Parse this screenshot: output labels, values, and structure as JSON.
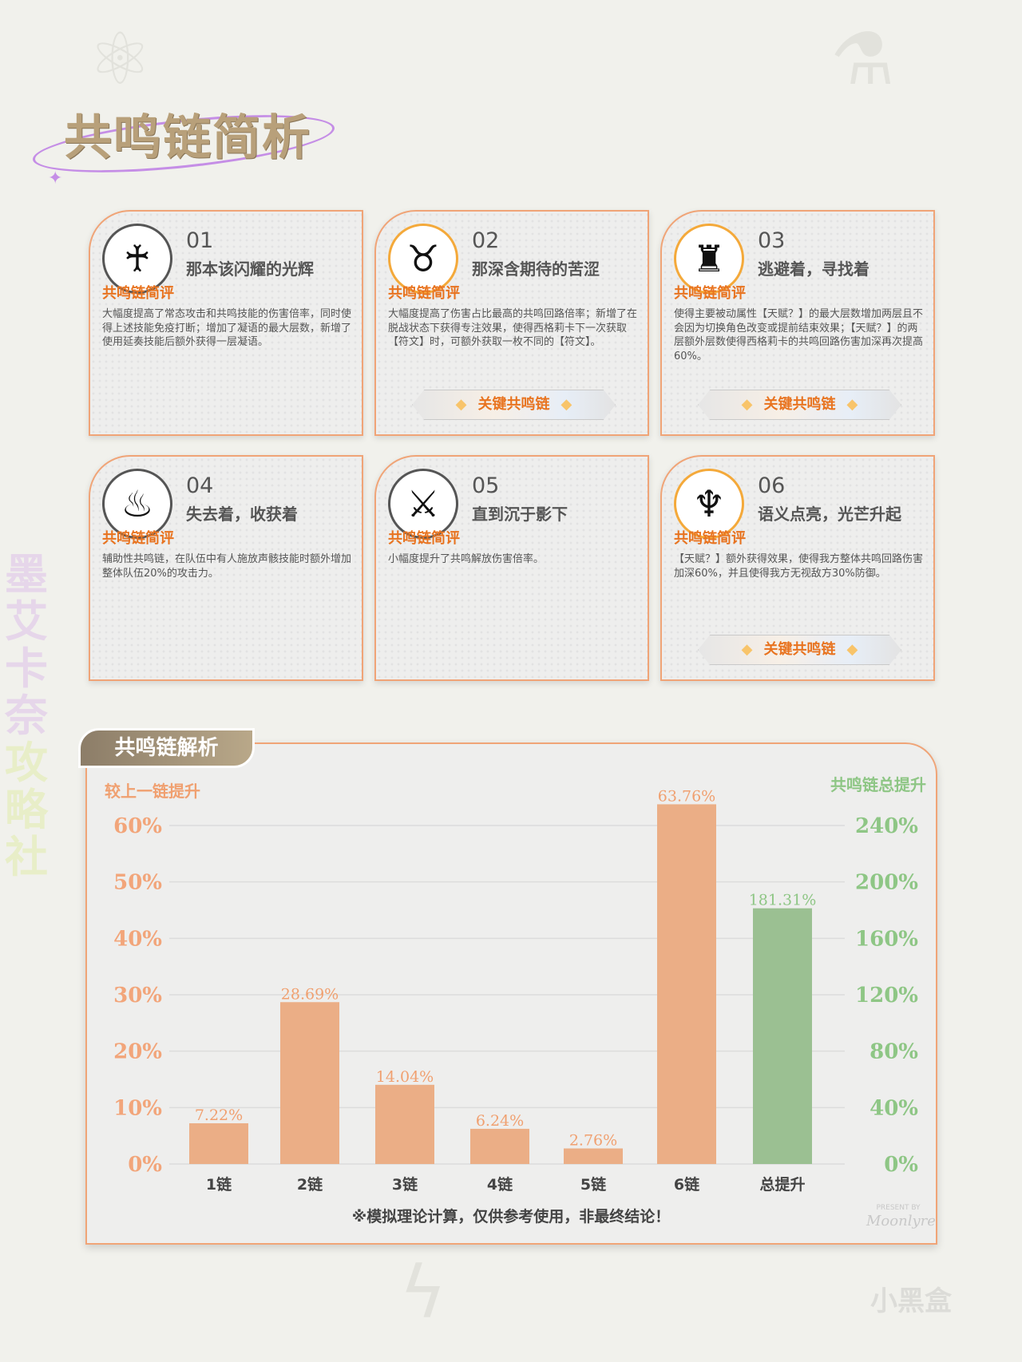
{
  "title": "共鸣链简析",
  "side_text": {
    "part1": "墨艾卡奈",
    "part2": "攻略社"
  },
  "cards": [
    {
      "num": "01",
      "title": "那本该闪耀的光辉",
      "heading": "共鸣链简评",
      "body": "大幅度提高了常态攻击和共鸣技能的伤害倍率，同时使得上述技能免疫打断；增加了凝语的最大层数，新增了使用延奏技能后额外获得一层凝语。",
      "key": false,
      "icon": "resonance-chain-1-icon"
    },
    {
      "num": "02",
      "title": "那深含期待的苦涩",
      "heading": "共鸣链简评",
      "body": "大幅度提高了伤害占比最高的共鸣回路倍率；新增了在脱战状态下获得专注效果，使得西格莉卡下一次获取【符文】时，可额外获取一枚不同的【符文】。",
      "key": true,
      "icon": "resonance-chain-2-icon"
    },
    {
      "num": "03",
      "title": "逃避着，寻找着",
      "heading": "共鸣链简评",
      "body": "使得主要被动属性【天赋？】的最大层数增加两层且不会因为切换角色改变或提前结束效果；【天赋？】的两层额外层数使得西格莉卡的共鸣回路伤害加深再次提高60%。",
      "key": true,
      "icon": "resonance-chain-3-icon"
    },
    {
      "num": "04",
      "title": "失去着，收获着",
      "heading": "共鸣链简评",
      "body": "辅助性共鸣链，在队伍中有人施放声骸技能时额外增加整体队伍20%的攻击力。",
      "key": false,
      "icon": "resonance-chain-4-icon"
    },
    {
      "num": "05",
      "title": "直到沉于影下",
      "heading": "共鸣链简评",
      "body": "小幅度提升了共鸣解放伤害倍率。",
      "key": false,
      "icon": "resonance-chain-5-icon"
    },
    {
      "num": "06",
      "title": "语义点亮，光芒升起",
      "heading": "共鸣链简评",
      "body": "【天赋？】额外获得效果，使得我方整体共鸣回路伤害加深60%，并且使得我方无视敌方30%防御。",
      "key": true,
      "icon": "resonance-chain-6-icon"
    }
  ],
  "key_label": "关键共鸣链",
  "section_tab": "共鸣链解析",
  "chart_data": {
    "type": "bar",
    "categories": [
      "1链",
      "2链",
      "3链",
      "4链",
      "5链",
      "6链",
      "总提升"
    ],
    "series": [
      {
        "name": "较上一链提升",
        "axis": "left",
        "values": [
          7.22,
          28.69,
          14.04,
          6.24,
          2.76,
          63.76,
          null
        ],
        "labels": [
          "7.22%",
          "28.69%",
          "14.04%",
          "6.24%",
          "2.76%",
          "63.76%",
          ""
        ],
        "color": "#ebae86"
      },
      {
        "name": "共鸣链总提升",
        "axis": "right",
        "values": [
          null,
          null,
          null,
          null,
          null,
          null,
          181.31
        ],
        "labels": [
          "",
          "",
          "",
          "",
          "",
          "",
          "181.31%"
        ],
        "color": "#9bc092"
      }
    ],
    "ylabel_left": "较上一链提升",
    "ylabel_right": "共鸣链总提升",
    "ylim_left": [
      0,
      60
    ],
    "yticks_left": [
      "0%",
      "10%",
      "20%",
      "30%",
      "40%",
      "50%",
      "60%"
    ],
    "ylim_right": [
      0,
      240
    ],
    "yticks_right": [
      "0%",
      "40%",
      "80%",
      "120%",
      "160%",
      "200%",
      "240%"
    ],
    "grid": true,
    "footnote": "※模拟理论计算，仅供参考使用，非最终结论！"
  },
  "present": {
    "label": "PRESENT BY",
    "signature": "Moonlyre"
  },
  "brand": "小黑盒"
}
